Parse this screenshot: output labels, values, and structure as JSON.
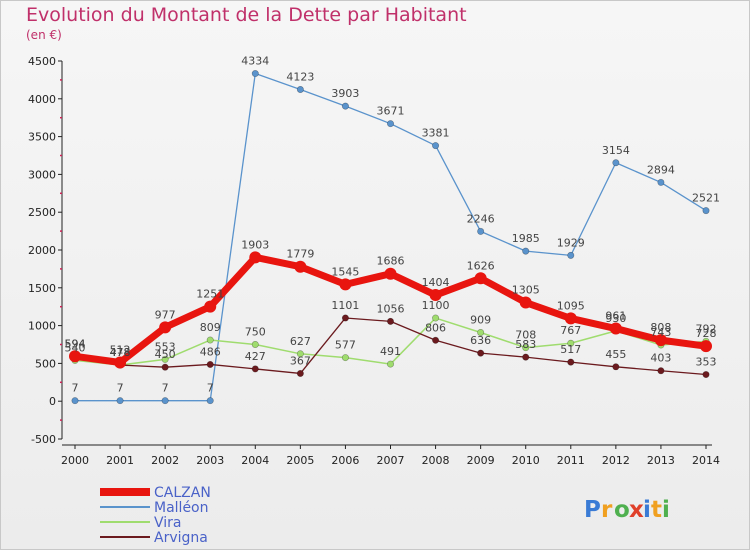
{
  "title": "Evolution du Montant de la Dette par Habitant",
  "subtitle": "(en €)",
  "brand": "Proxiti",
  "brand_colors": [
    "#3a7bd5",
    "#f0a020",
    "#4fb04f",
    "#e0402a",
    "#3a7bd5",
    "#f0a020",
    "#4fb04f"
  ],
  "chart_data": {
    "type": "line",
    "x": [
      2000,
      2001,
      2002,
      2003,
      2004,
      2005,
      2006,
      2007,
      2008,
      2009,
      2010,
      2011,
      2012,
      2013,
      2014
    ],
    "ylim": [
      -500,
      4500
    ],
    "yticks": [
      -500,
      0,
      500,
      1000,
      1500,
      2000,
      2500,
      3000,
      3500,
      4000,
      4500
    ],
    "grid": false,
    "legend_position": "bottom-left",
    "series": [
      {
        "name": "CALZAN",
        "color": "#e8150f",
        "width": 7,
        "values": [
          594,
          512,
          977,
          1251,
          1903,
          1779,
          1545,
          1686,
          1404,
          1626,
          1305,
          1095,
          961,
          808,
          728
        ]
      },
      {
        "name": "Malléon",
        "color": "#5a93cc",
        "width": 1.3,
        "values": [
          7,
          7,
          7,
          7,
          4334,
          4123,
          3903,
          3671,
          3381,
          2246,
          1985,
          1929,
          3154,
          2894,
          2521
        ]
      },
      {
        "name": "Vira",
        "color": "#9fdc6e",
        "width": 1.5,
        "values": [
          540,
          478,
          553,
          809,
          750,
          627,
          577,
          491,
          1100,
          909,
          708,
          767,
          930,
          743,
          792
        ]
      },
      {
        "name": "Arvigna",
        "color": "#6b1a1e",
        "width": 1.3,
        "values": [
          594,
          478,
          450,
          486,
          427,
          367,
          1101,
          1056,
          806,
          636,
          583,
          517,
          455,
          403,
          353
        ]
      }
    ]
  }
}
